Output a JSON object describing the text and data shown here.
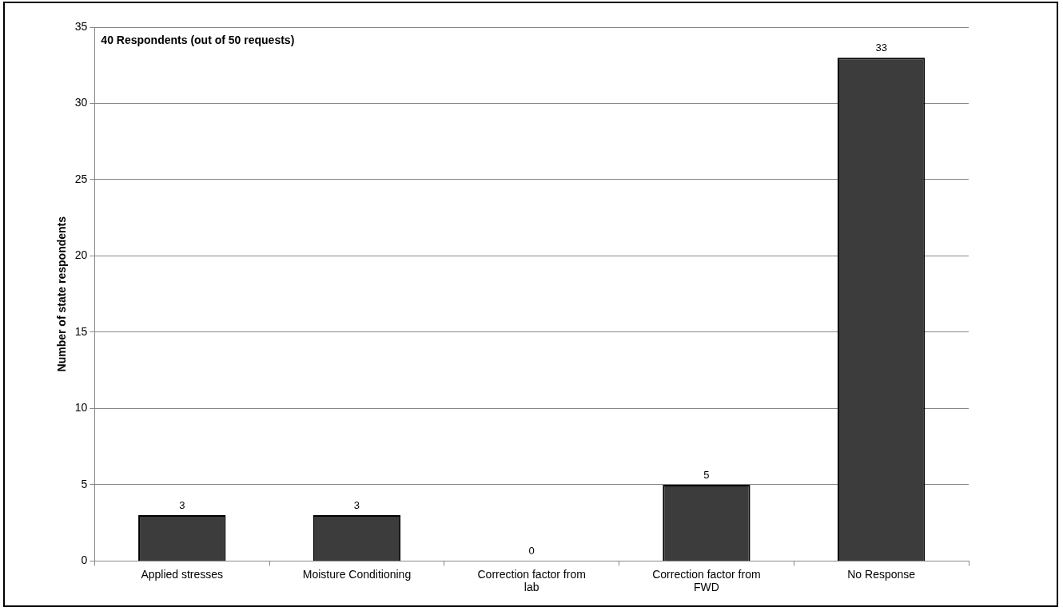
{
  "chart_data": {
    "type": "bar",
    "ylabel": "Number of state respondents",
    "categories": [
      "Applied stresses",
      "Moisture Conditioning",
      "Correction factor from lab",
      "Correction factor from FWD",
      "No Response"
    ],
    "values": [
      3,
      3,
      0,
      5,
      33
    ],
    "color": "#3c3c3c",
    "ylim": [
      0,
      35
    ],
    "yticks": [
      0,
      5,
      10,
      15,
      20,
      25,
      30,
      35
    ],
    "grid": "y",
    "data_labels": true,
    "annotations": [
      "40 Respondents (out of 50 requests)"
    ]
  }
}
